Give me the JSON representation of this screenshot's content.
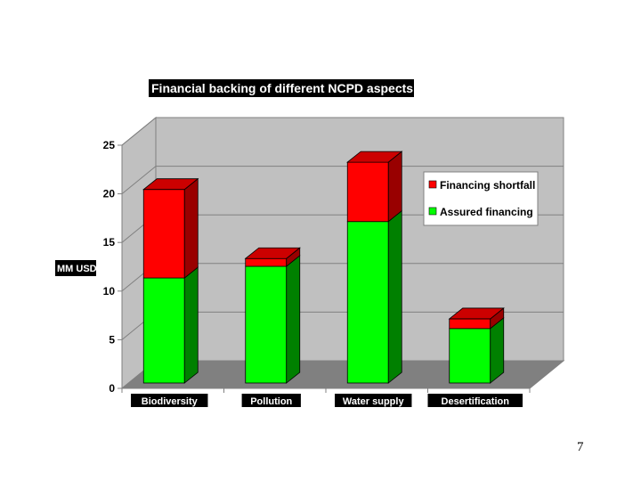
{
  "slide": {
    "page_number": "7"
  },
  "chart_data": {
    "type": "bar",
    "stacked": true,
    "three_d": true,
    "title": "Financial backing of different NCPD aspects",
    "ylabel": "MM USD",
    "xlabel": "",
    "categories": [
      "Biodiversity",
      "Pollution",
      "Water supply",
      "Desertification"
    ],
    "series": [
      {
        "name": "Assured financing",
        "values": [
          10.8,
          12.0,
          16.6,
          5.6
        ],
        "color": "#00ff00",
        "side_color": "#008000",
        "top_color": "#00cc00"
      },
      {
        "name": "Financing shortfall",
        "values": [
          9.1,
          0.8,
          6.1,
          1.0
        ],
        "color": "#ff0000",
        "side_color": "#990000",
        "top_color": "#cc0000"
      }
    ],
    "ylim": [
      0,
      25
    ],
    "yticks": [
      "0",
      "5",
      "10",
      "15",
      "20",
      "25"
    ],
    "grid": true,
    "legend": {
      "placement": "right",
      "entries": [
        "Financing shortfall",
        "Assured financing"
      ]
    },
    "colors": {
      "wall": "#c0c0c0",
      "floor": "#808080",
      "gridline": "#808080",
      "label_bg": "#000000",
      "label_fg": "#ffffff"
    }
  }
}
